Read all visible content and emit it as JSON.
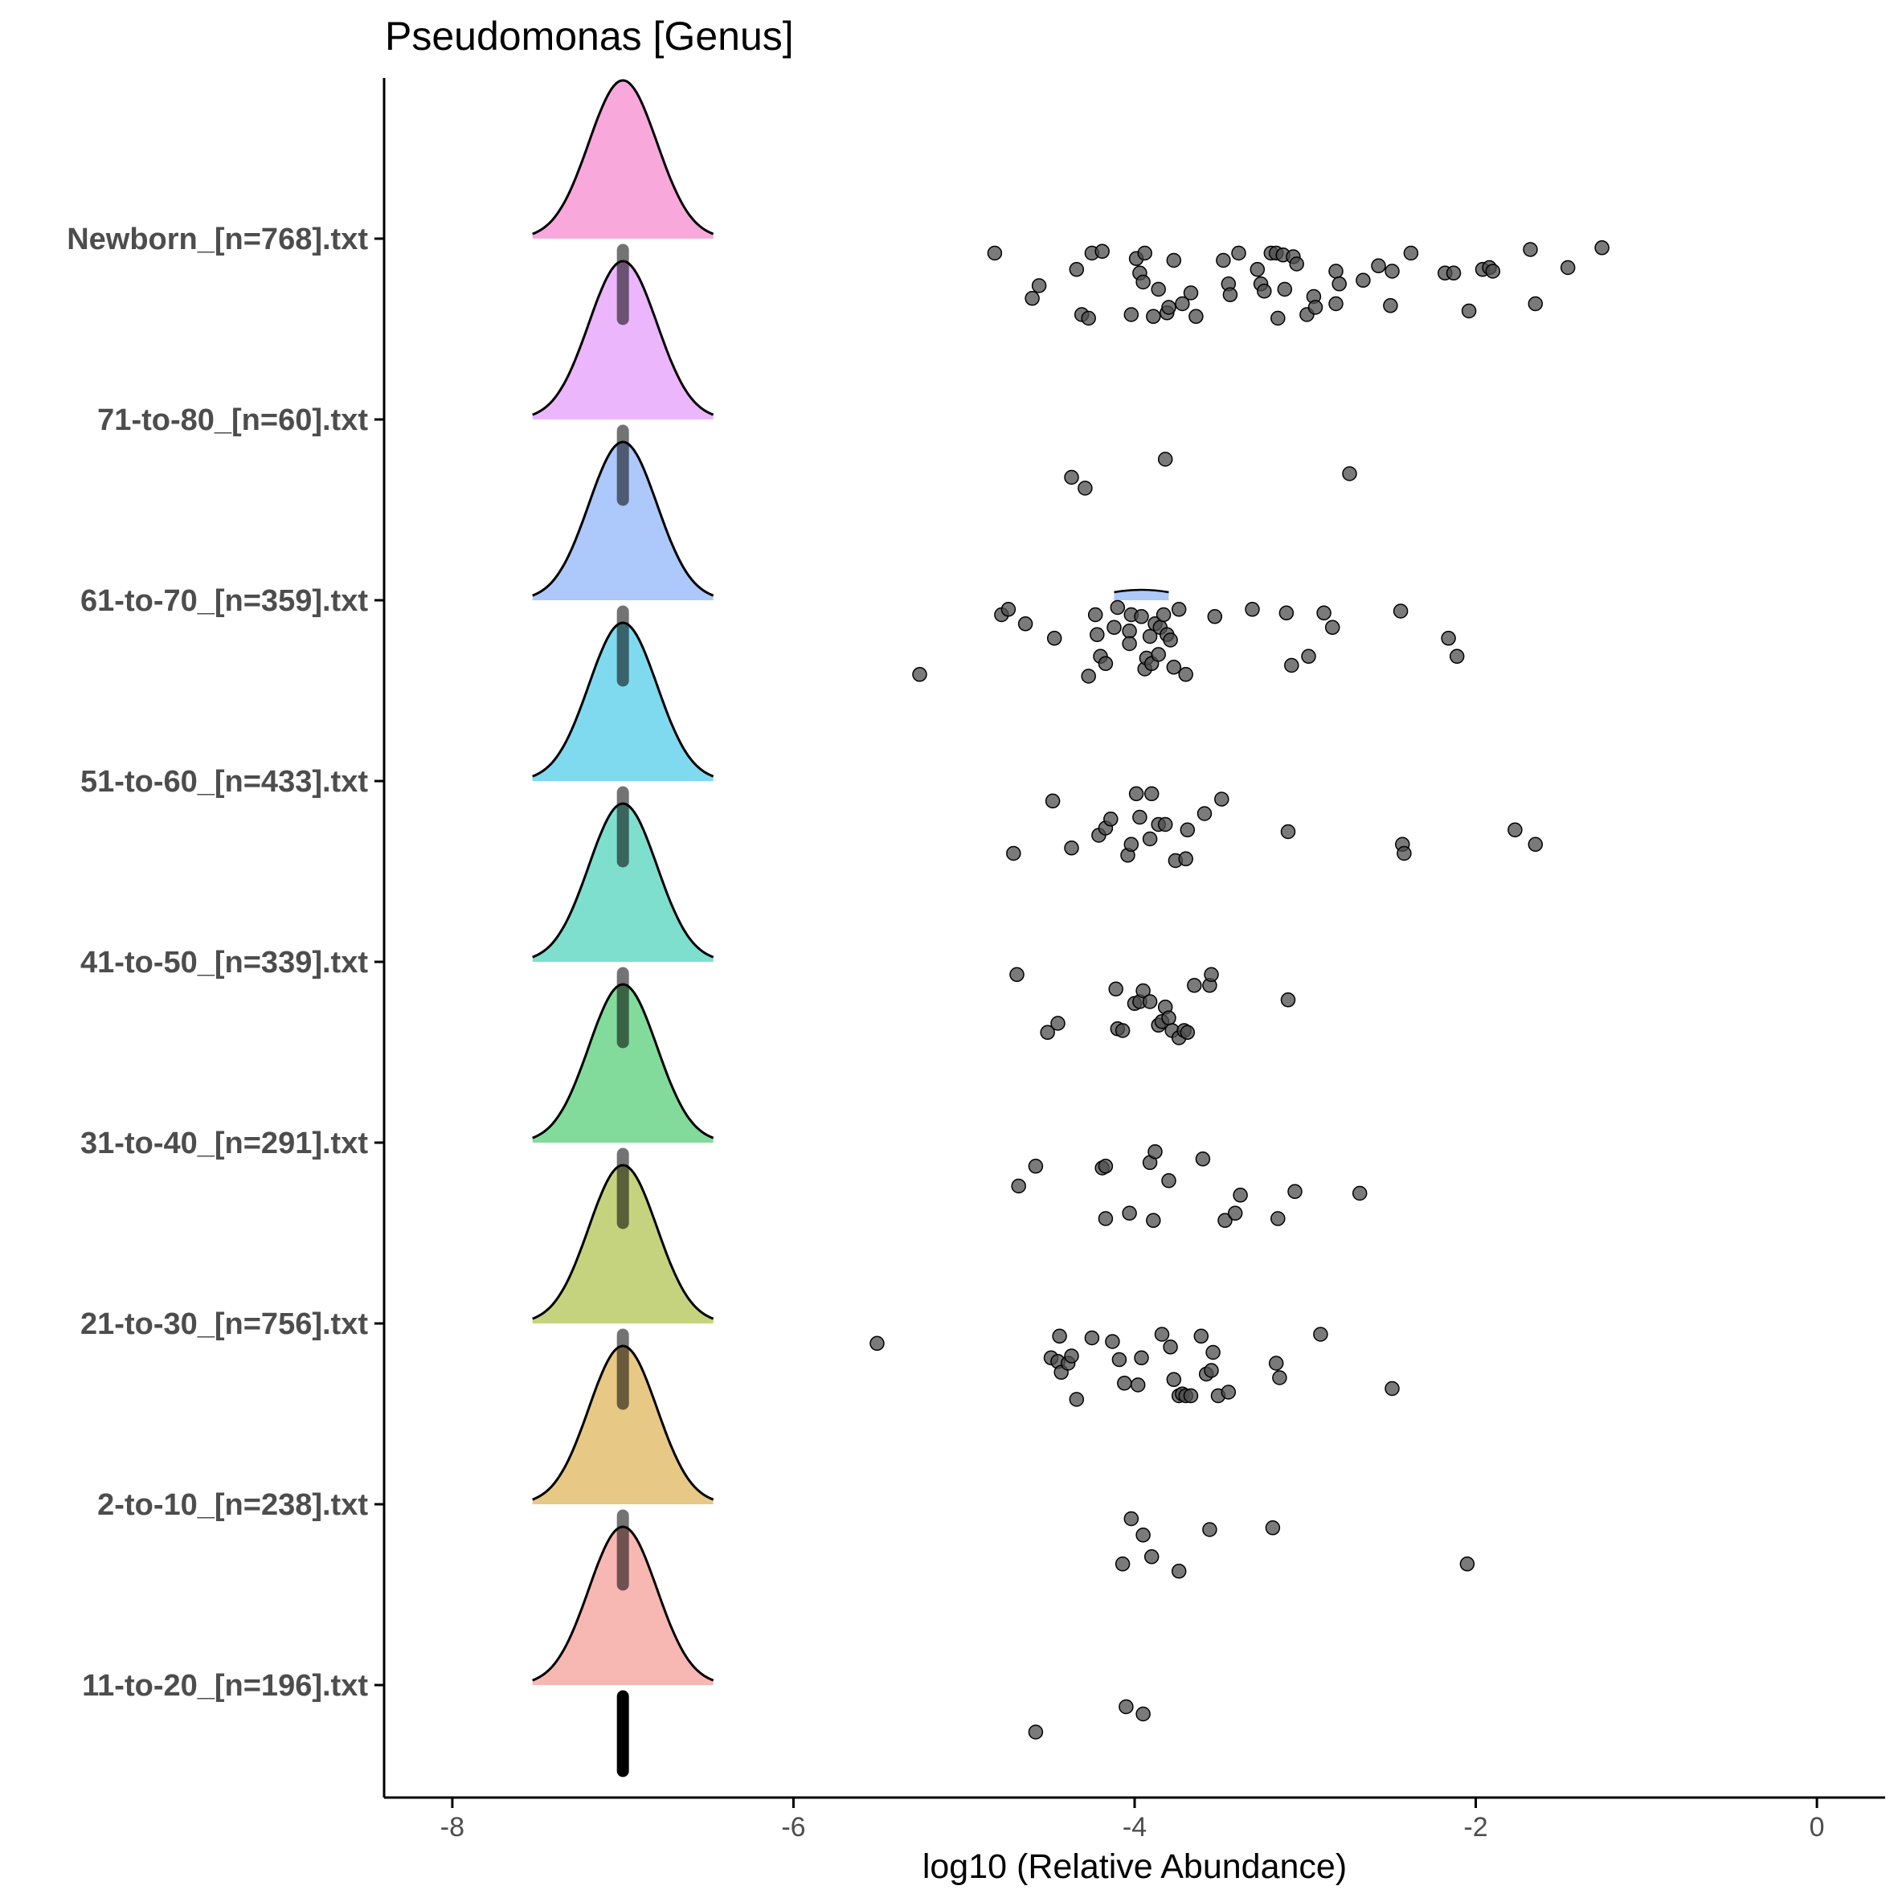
{
  "chart_data": {
    "type": "ridgeline-jitter",
    "title": "Pseudomonas [Genus]",
    "xlabel": "log10 (Relative Abundance)",
    "ylabel": "",
    "xlim": [
      -8.4,
      0.4
    ],
    "x_ticks": [
      -8,
      -6,
      -4,
      -2,
      0
    ],
    "x_tick_labels": [
      "-8",
      "-6",
      "-4",
      "-2",
      "0"
    ],
    "grid": false,
    "legend": "none",
    "point_color": "#000000",
    "groups": [
      {
        "label": "Newborn_[n=768].txt",
        "color": "#f9a8dc",
        "points": [
          {
            "x": -4.82,
            "y": -0.08
          },
          {
            "x": -4.6,
            "y": -0.33
          },
          {
            "x": -4.56,
            "y": -0.26
          },
          {
            "x": -4.34,
            "y": -0.17
          },
          {
            "x": -4.31,
            "y": -0.42
          },
          {
            "x": -4.27,
            "y": -0.44
          },
          {
            "x": -4.25,
            "y": -0.08
          },
          {
            "x": -4.19,
            "y": -0.07
          },
          {
            "x": -4.02,
            "y": -0.42
          },
          {
            "x": -3.99,
            "y": -0.11
          },
          {
            "x": -3.97,
            "y": -0.19
          },
          {
            "x": -3.95,
            "y": -0.24
          },
          {
            "x": -3.94,
            "y": -0.08
          },
          {
            "x": -3.89,
            "y": -0.43
          },
          {
            "x": -3.86,
            "y": -0.28
          },
          {
            "x": -3.81,
            "y": -0.41
          },
          {
            "x": -3.8,
            "y": -0.38
          },
          {
            "x": -3.77,
            "y": -0.12
          },
          {
            "x": -3.72,
            "y": -0.36
          },
          {
            "x": -3.67,
            "y": -0.3
          },
          {
            "x": -3.64,
            "y": -0.43
          },
          {
            "x": -3.48,
            "y": -0.12
          },
          {
            "x": -3.45,
            "y": -0.25
          },
          {
            "x": -3.44,
            "y": -0.31
          },
          {
            "x": -3.39,
            "y": -0.08
          },
          {
            "x": -3.28,
            "y": -0.17
          },
          {
            "x": -3.26,
            "y": -0.25
          },
          {
            "x": -3.24,
            "y": -0.29
          },
          {
            "x": -3.2,
            "y": -0.08
          },
          {
            "x": -3.17,
            "y": -0.08
          },
          {
            "x": -3.16,
            "y": -0.44
          },
          {
            "x": -3.13,
            "y": -0.09
          },
          {
            "x": -3.12,
            "y": -0.28
          },
          {
            "x": -3.07,
            "y": -0.1
          },
          {
            "x": -3.05,
            "y": -0.14
          },
          {
            "x": -2.99,
            "y": -0.42
          },
          {
            "x": -2.95,
            "y": -0.32
          },
          {
            "x": -2.94,
            "y": -0.38
          },
          {
            "x": -2.82,
            "y": -0.18
          },
          {
            "x": -2.82,
            "y": -0.36
          },
          {
            "x": -2.8,
            "y": -0.25
          },
          {
            "x": -2.66,
            "y": -0.23
          },
          {
            "x": -2.57,
            "y": -0.15
          },
          {
            "x": -2.5,
            "y": -0.37
          },
          {
            "x": -2.49,
            "y": -0.18
          },
          {
            "x": -2.38,
            "y": -0.08
          },
          {
            "x": -2.18,
            "y": -0.19
          },
          {
            "x": -2.13,
            "y": -0.19
          },
          {
            "x": -2.04,
            "y": -0.4
          },
          {
            "x": -1.96,
            "y": -0.17
          },
          {
            "x": -1.92,
            "y": -0.16
          },
          {
            "x": -1.9,
            "y": -0.18
          },
          {
            "x": -1.68,
            "y": -0.06
          },
          {
            "x": -1.65,
            "y": -0.36
          },
          {
            "x": -1.46,
            "y": -0.16
          },
          {
            "x": -1.26,
            "y": -0.05
          }
        ]
      },
      {
        "label": "71-to-80_[n=60].txt",
        "color": "#ebb6fc",
        "points": [
          {
            "x": -4.37,
            "y": -0.32
          },
          {
            "x": -4.29,
            "y": -0.38
          },
          {
            "x": -3.82,
            "y": -0.22
          },
          {
            "x": -2.74,
            "y": -0.3
          }
        ]
      },
      {
        "label": "61-to-70_[n=359].txt",
        "color": "#adc8fb",
        "points": [
          {
            "x": -5.26,
            "y": -0.41
          },
          {
            "x": -4.78,
            "y": -0.08
          },
          {
            "x": -4.74,
            "y": -0.05
          },
          {
            "x": -4.64,
            "y": -0.13
          },
          {
            "x": -4.47,
            "y": -0.21
          },
          {
            "x": -4.27,
            "y": -0.42
          },
          {
            "x": -4.23,
            "y": -0.08
          },
          {
            "x": -4.22,
            "y": -0.19
          },
          {
            "x": -4.2,
            "y": -0.31
          },
          {
            "x": -4.17,
            "y": -0.35
          },
          {
            "x": -4.12,
            "y": -0.15
          },
          {
            "x": -4.1,
            "y": -0.04
          },
          {
            "x": -4.03,
            "y": -0.17
          },
          {
            "x": -4.03,
            "y": -0.24
          },
          {
            "x": -4.02,
            "y": -0.08
          },
          {
            "x": -3.96,
            "y": -0.09
          },
          {
            "x": -3.94,
            "y": -0.38
          },
          {
            "x": -3.93,
            "y": -0.32
          },
          {
            "x": -3.91,
            "y": -0.2
          },
          {
            "x": -3.9,
            "y": -0.35
          },
          {
            "x": -3.88,
            "y": -0.13
          },
          {
            "x": -3.86,
            "y": -0.3
          },
          {
            "x": -3.85,
            "y": -0.15
          },
          {
            "x": -3.83,
            "y": -0.08
          },
          {
            "x": -3.81,
            "y": -0.19
          },
          {
            "x": -3.79,
            "y": -0.22
          },
          {
            "x": -3.77,
            "y": -0.37
          },
          {
            "x": -3.74,
            "y": -0.05
          },
          {
            "x": -3.7,
            "y": -0.41
          },
          {
            "x": -3.53,
            "y": -0.09
          },
          {
            "x": -3.31,
            "y": -0.05
          },
          {
            "x": -3.11,
            "y": -0.07
          },
          {
            "x": -3.08,
            "y": -0.36
          },
          {
            "x": -2.98,
            "y": -0.31
          },
          {
            "x": -2.89,
            "y": -0.07
          },
          {
            "x": -2.84,
            "y": -0.15
          },
          {
            "x": -2.44,
            "y": -0.06
          },
          {
            "x": -2.16,
            "y": -0.21
          },
          {
            "x": -2.11,
            "y": -0.31
          }
        ]
      },
      {
        "label": "51-to-60_[n=433].txt",
        "color": "#80daef",
        "points": [
          {
            "x": -4.71,
            "y": -0.4
          },
          {
            "x": -4.48,
            "y": -0.11
          },
          {
            "x": -4.37,
            "y": -0.37
          },
          {
            "x": -4.21,
            "y": -0.3
          },
          {
            "x": -4.17,
            "y": -0.26
          },
          {
            "x": -4.14,
            "y": -0.21
          },
          {
            "x": -4.04,
            "y": -0.41
          },
          {
            "x": -4.02,
            "y": -0.35
          },
          {
            "x": -3.99,
            "y": -0.07
          },
          {
            "x": -3.97,
            "y": -0.2
          },
          {
            "x": -3.91,
            "y": -0.32
          },
          {
            "x": -3.9,
            "y": -0.07
          },
          {
            "x": -3.86,
            "y": -0.24
          },
          {
            "x": -3.82,
            "y": -0.24
          },
          {
            "x": -3.76,
            "y": -0.44
          },
          {
            "x": -3.7,
            "y": -0.43
          },
          {
            "x": -3.69,
            "y": -0.27
          },
          {
            "x": -3.59,
            "y": -0.18
          },
          {
            "x": -3.49,
            "y": -0.1
          },
          {
            "x": -3.1,
            "y": -0.28
          },
          {
            "x": -2.43,
            "y": -0.35
          },
          {
            "x": -2.42,
            "y": -0.4
          },
          {
            "x": -1.77,
            "y": -0.27
          },
          {
            "x": -1.65,
            "y": -0.35
          }
        ]
      },
      {
        "label": "41-to-50_[n=339].txt",
        "color": "#7fdfcf",
        "points": [
          {
            "x": -4.69,
            "y": -0.07
          },
          {
            "x": -4.51,
            "y": -0.39
          },
          {
            "x": -4.45,
            "y": -0.34
          },
          {
            "x": -4.11,
            "y": -0.15
          },
          {
            "x": -4.1,
            "y": -0.37
          },
          {
            "x": -4.07,
            "y": -0.38
          },
          {
            "x": -4.0,
            "y": -0.23
          },
          {
            "x": -3.97,
            "y": -0.22
          },
          {
            "x": -3.95,
            "y": -0.16
          },
          {
            "x": -3.91,
            "y": -0.22
          },
          {
            "x": -3.86,
            "y": -0.35
          },
          {
            "x": -3.84,
            "y": -0.33
          },
          {
            "x": -3.82,
            "y": -0.25
          },
          {
            "x": -3.8,
            "y": -0.31
          },
          {
            "x": -3.78,
            "y": -0.38
          },
          {
            "x": -3.74,
            "y": -0.42
          },
          {
            "x": -3.71,
            "y": -0.38
          },
          {
            "x": -3.69,
            "y": -0.39
          },
          {
            "x": -3.65,
            "y": -0.13
          },
          {
            "x": -3.56,
            "y": -0.13
          },
          {
            "x": -3.55,
            "y": -0.07
          },
          {
            "x": -3.1,
            "y": -0.21
          }
        ]
      },
      {
        "label": "31-to-40_[n=291].txt",
        "color": "#82db9b",
        "points": [
          {
            "x": -4.68,
            "y": -0.24
          },
          {
            "x": -4.58,
            "y": -0.13
          },
          {
            "x": -4.19,
            "y": -0.14
          },
          {
            "x": -4.17,
            "y": -0.13
          },
          {
            "x": -4.17,
            "y": -0.42
          },
          {
            "x": -4.03,
            "y": -0.39
          },
          {
            "x": -3.91,
            "y": -0.11
          },
          {
            "x": -3.88,
            "y": -0.05
          },
          {
            "x": -3.8,
            "y": -0.21
          },
          {
            "x": -3.89,
            "y": -0.43
          },
          {
            "x": -3.6,
            "y": -0.09
          },
          {
            "x": -3.47,
            "y": -0.43
          },
          {
            "x": -3.41,
            "y": -0.39
          },
          {
            "x": -3.38,
            "y": -0.29
          },
          {
            "x": -3.16,
            "y": -0.42
          },
          {
            "x": -3.06,
            "y": -0.27
          },
          {
            "x": -2.68,
            "y": -0.28
          }
        ]
      },
      {
        "label": "21-to-30_[n=756].txt",
        "color": "#c5d37e",
        "points": [
          {
            "x": -5.51,
            "y": -0.11
          },
          {
            "x": -4.49,
            "y": -0.19
          },
          {
            "x": -4.45,
            "y": -0.21
          },
          {
            "x": -4.44,
            "y": -0.07
          },
          {
            "x": -4.43,
            "y": -0.27
          },
          {
            "x": -4.39,
            "y": -0.22
          },
          {
            "x": -4.37,
            "y": -0.18
          },
          {
            "x": -4.34,
            "y": -0.42
          },
          {
            "x": -4.25,
            "y": -0.08
          },
          {
            "x": -4.13,
            "y": -0.1
          },
          {
            "x": -4.09,
            "y": -0.2
          },
          {
            "x": -4.06,
            "y": -0.33
          },
          {
            "x": -3.98,
            "y": -0.34
          },
          {
            "x": -3.96,
            "y": -0.19
          },
          {
            "x": -3.84,
            "y": -0.06
          },
          {
            "x": -3.79,
            "y": -0.13
          },
          {
            "x": -3.77,
            "y": -0.31
          },
          {
            "x": -3.74,
            "y": -0.4
          },
          {
            "x": -3.72,
            "y": -0.39
          },
          {
            "x": -3.7,
            "y": -0.4
          },
          {
            "x": -3.67,
            "y": -0.4
          },
          {
            "x": -3.61,
            "y": -0.07
          },
          {
            "x": -3.58,
            "y": -0.28
          },
          {
            "x": -3.55,
            "y": -0.26
          },
          {
            "x": -3.54,
            "y": -0.16
          },
          {
            "x": -3.51,
            "y": -0.4
          },
          {
            "x": -3.45,
            "y": -0.38
          },
          {
            "x": -3.17,
            "y": -0.22
          },
          {
            "x": -3.15,
            "y": -0.3
          },
          {
            "x": -2.91,
            "y": -0.06
          },
          {
            "x": -2.49,
            "y": -0.36
          }
        ]
      },
      {
        "label": "2-to-10_[n=238].txt",
        "color": "#e7c884",
        "points": [
          {
            "x": -4.07,
            "y": -0.33
          },
          {
            "x": -4.02,
            "y": -0.08
          },
          {
            "x": -3.95,
            "y": -0.17
          },
          {
            "x": -3.9,
            "y": -0.29
          },
          {
            "x": -3.74,
            "y": -0.37
          },
          {
            "x": -3.56,
            "y": -0.14
          },
          {
            "x": -3.19,
            "y": -0.13
          },
          {
            "x": -2.05,
            "y": -0.33
          }
        ]
      },
      {
        "label": "11-to-20_[n=196].txt",
        "color": "#f7b7b2",
        "points": [
          {
            "x": -4.58,
            "y": -0.26
          },
          {
            "x": -4.05,
            "y": -0.12
          },
          {
            "x": -3.95,
            "y": -0.16
          }
        ]
      }
    ],
    "density": {
      "center": -7.0,
      "sd": 0.2,
      "half_width": 0.53
    },
    "median_line": {
      "x": -7.0
    },
    "extra_density": {
      "group": "61-to-70_[n=359].txt",
      "x_range": [
        -4.12,
        -3.8
      ]
    }
  }
}
